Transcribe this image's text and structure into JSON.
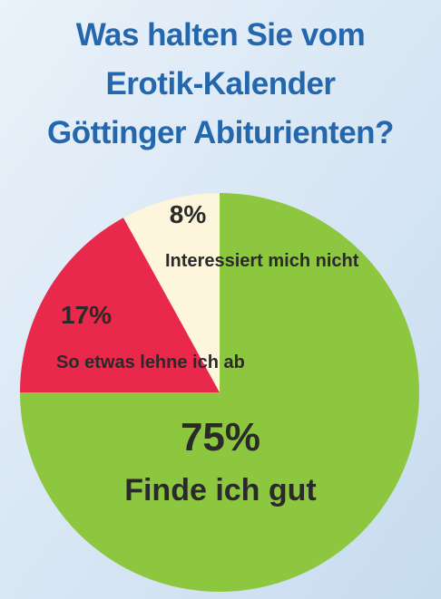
{
  "chart_data": {
    "type": "pie",
    "title": [
      "Was halten Sie vom",
      "Erotik-Kalender",
      "Göttinger Abiturienten?"
    ],
    "categories": [
      "Finde ich gut",
      "So etwas lehne ich ab",
      "Interessiert mich nicht"
    ],
    "values": [
      75,
      17,
      8
    ],
    "value_labels": [
      "75%",
      "17%",
      "8%"
    ],
    "colors": [
      "#8dc63f",
      "#e8294c",
      "#fdf5dc"
    ]
  }
}
